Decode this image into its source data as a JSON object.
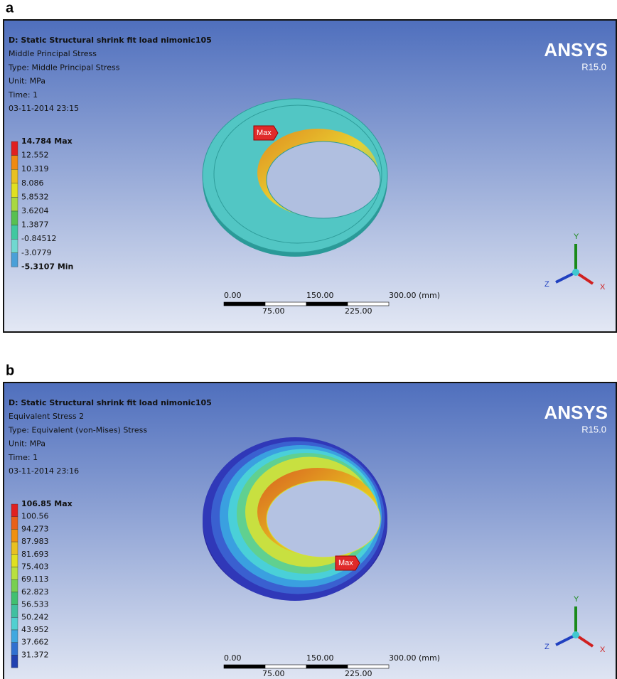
{
  "panels": [
    {
      "label": "a",
      "header": [
        "D: Static Structural shrink fit load nimonic105",
        "Middle Principal Stress",
        "Type: Middle Principal Stress",
        "Unit: MPa",
        "Time: 1",
        "03-11-2014 23:15"
      ],
      "brand": "ANSYS",
      "version": "R15.0",
      "legend": [
        "14.784 Max",
        "12.552",
        "10.319",
        "8.086",
        "5.8532",
        "3.6204",
        "1.3877",
        "-0.84512",
        "-3.0779",
        "-5.3107 Min"
      ],
      "probe": "Max",
      "scale_top": [
        "0.00",
        "150.00",
        "300.00 (mm)"
      ],
      "scale_bottom": [
        "75.00",
        "225.00"
      ],
      "axes": [
        "X",
        "Y",
        "Z"
      ]
    },
    {
      "label": "b",
      "header": [
        "D: Static Structural shrink fit load nimonic105",
        "Equivalent Stress 2",
        "Type: Equivalent (von-Mises) Stress",
        "Unit: MPa",
        "Time: 1",
        "03-11-2014 23:16"
      ],
      "brand": "ANSYS",
      "version": "R15.0",
      "legend": [
        "106.85 Max",
        "100.56",
        "94.273",
        "87.983",
        "81.693",
        "75.403",
        "69.113",
        "62.823",
        "56.533",
        "50.242",
        "43.952",
        "37.662",
        "31.372"
      ],
      "probe": "Max",
      "scale_top": [
        "0.00",
        "150.00",
        "300.00 (mm)"
      ],
      "scale_bottom": [
        "75.00",
        "225.00"
      ],
      "axes": [
        "X",
        "Y",
        "Z"
      ]
    }
  ]
}
